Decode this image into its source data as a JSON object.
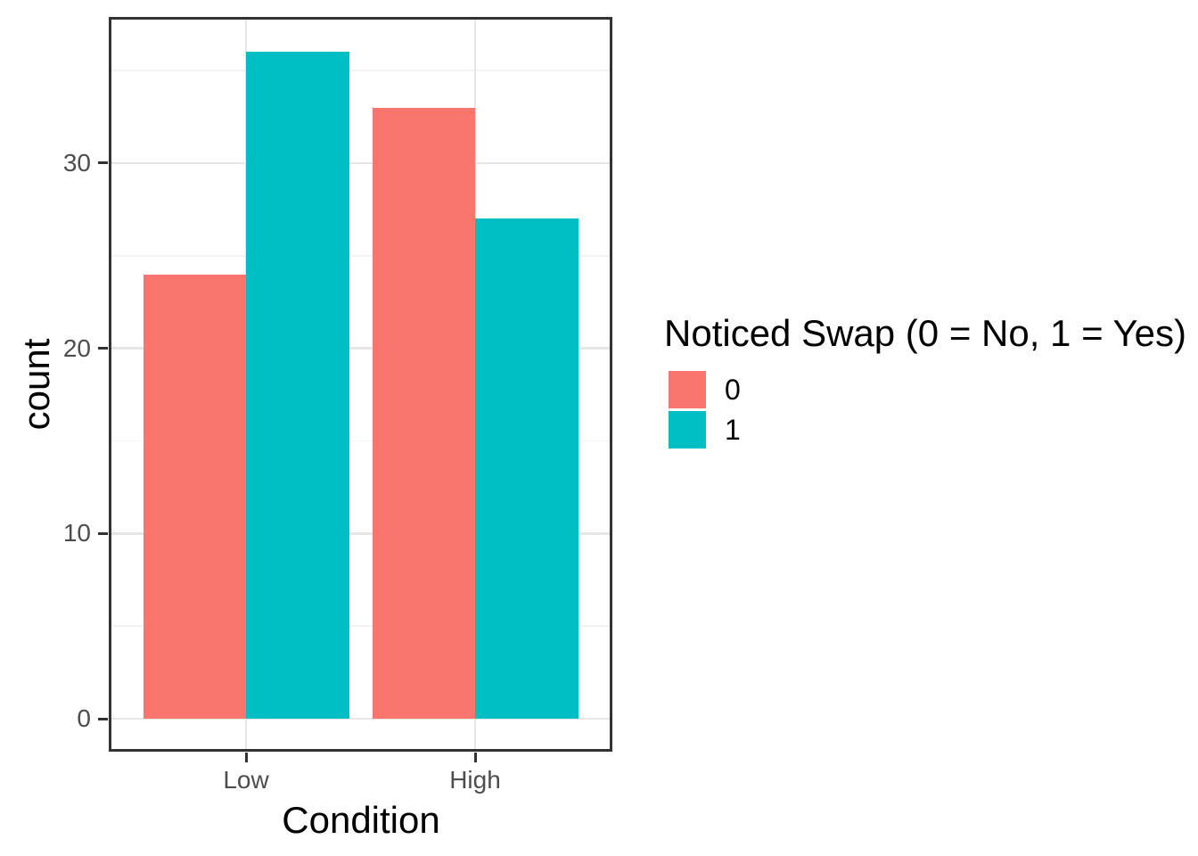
{
  "chart_data": {
    "type": "bar",
    "bar_layout": "dodge",
    "title": "",
    "xlabel": "Condition",
    "ylabel": "count",
    "categories": [
      "Low",
      "High"
    ],
    "series": [
      {
        "name": "0",
        "color": "#F8766D",
        "values": [
          24,
          33
        ]
      },
      {
        "name": "1",
        "color": "#00BFC4",
        "values": [
          36,
          27
        ]
      }
    ],
    "ylim": [
      0,
      36
    ],
    "y_major_ticks": [
      0,
      10,
      20,
      30
    ],
    "y_minor_ticks": [
      5,
      15,
      25,
      35
    ],
    "grid": true,
    "legend_position": "right",
    "legend": {
      "title": "Noticed Swap (0 = No, 1 = Yes)",
      "entries": [
        {
          "label": "0",
          "color": "#F8766D"
        },
        {
          "label": "1",
          "color": "#00BFC4"
        }
      ]
    },
    "theme": "bw"
  },
  "colors": {
    "panel_border": "#333333",
    "grid_major": "#E6E6E6",
    "grid_minor": "#F3F3F3",
    "axis_text": "#4D4D4D",
    "title_text": "#000000",
    "background": "#FFFFFF"
  }
}
